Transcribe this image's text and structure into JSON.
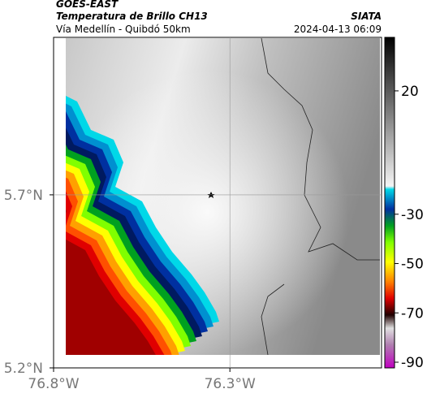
{
  "header": {
    "title": "GOES-EAST",
    "subtitle": "Temperatura de Brillo CH13",
    "source": "SIATA",
    "location": "Vía Medellín - Quibdó 50km",
    "datetime": "2024-04-13 06:09"
  },
  "map": {
    "xlim": [
      -76.8,
      -75.87
    ],
    "ylim": [
      5.2,
      6.155
    ],
    "xticks": [
      {
        "value": -76.8,
        "label": "76.8°W"
      },
      {
        "value": -76.3,
        "label": "76.3°W"
      }
    ],
    "yticks": [
      {
        "value": 5.2,
        "label": "5.2°N"
      },
      {
        "value": 5.7,
        "label": "5.7°N"
      }
    ],
    "grid": true
  },
  "colorbar": {
    "range": [
      -92.3,
      41.7
    ],
    "ticks": [
      20,
      -30,
      -50,
      -70,
      -90
    ]
  }
}
